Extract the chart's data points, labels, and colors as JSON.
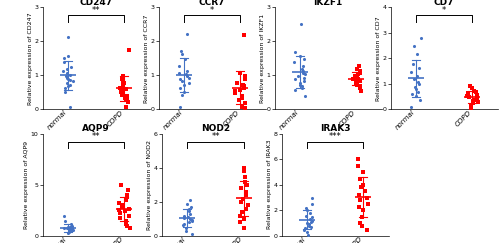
{
  "panels": [
    {
      "title": "CD247",
      "ylabel": "Relative expression of CD247",
      "significance": "**",
      "ylim": [
        0,
        3
      ],
      "yticks": [
        0,
        1,
        2,
        3
      ],
      "normal_points": [
        0.08,
        0.5,
        0.62,
        0.68,
        0.72,
        0.78,
        0.82,
        0.87,
        0.9,
        0.93,
        0.97,
        1.02,
        1.07,
        1.12,
        1.18,
        1.25,
        1.38,
        1.52,
        1.58,
        2.12
      ],
      "copd_points": [
        0.08,
        0.22,
        0.28,
        0.33,
        0.38,
        0.42,
        0.48,
        0.52,
        0.57,
        0.6,
        0.63,
        0.68,
        0.73,
        0.78,
        0.83,
        0.88,
        0.98,
        1.75
      ],
      "row": 0,
      "col": 0,
      "normal_marker": "o",
      "copd_marker": "s"
    },
    {
      "title": "CCR7",
      "ylabel": "Relative expression of CCR7",
      "significance": "*",
      "ylim": [
        0,
        3
      ],
      "yticks": [
        0,
        1,
        2,
        3
      ],
      "normal_points": [
        0.08,
        0.42,
        0.52,
        0.62,
        0.72,
        0.78,
        0.83,
        0.88,
        0.93,
        0.98,
        1.03,
        1.08,
        1.13,
        1.28,
        1.48,
        1.62,
        1.72,
        2.22
      ],
      "copd_points": [
        0.03,
        0.08,
        0.18,
        0.28,
        0.33,
        0.38,
        0.48,
        0.53,
        0.58,
        0.63,
        0.68,
        0.73,
        0.78,
        0.88,
        0.98,
        1.08,
        2.18
      ],
      "row": 0,
      "col": 1,
      "normal_marker": "o",
      "copd_marker": "s"
    },
    {
      "title": "IKZF1",
      "ylabel": "Relative expression of IKZF1",
      "significance": null,
      "ylim": [
        0,
        3
      ],
      "yticks": [
        0,
        1,
        2,
        3
      ],
      "normal_points": [
        0.38,
        0.58,
        0.63,
        0.68,
        0.73,
        0.78,
        0.83,
        0.88,
        0.93,
        0.98,
        1.03,
        1.08,
        1.13,
        1.18,
        1.28,
        1.38,
        1.48,
        1.58,
        1.68,
        2.52
      ],
      "copd_points": [
        0.53,
        0.63,
        0.68,
        0.73,
        0.78,
        0.83,
        0.86,
        0.88,
        0.9,
        0.93,
        0.98,
        1.03,
        1.08,
        1.13,
        1.18,
        1.28
      ],
      "row": 0,
      "col": 2,
      "normal_marker": "o",
      "copd_marker": "s"
    },
    {
      "title": "CD7",
      "ylabel": "Relative expression of CD7",
      "significance": "*",
      "ylim": [
        0,
        4
      ],
      "yticks": [
        0,
        1,
        2,
        3,
        4
      ],
      "normal_points": [
        0.08,
        0.38,
        0.52,
        0.62,
        0.68,
        0.78,
        0.88,
        0.98,
        1.08,
        1.18,
        1.32,
        1.48,
        1.62,
        1.78,
        2.18,
        2.48,
        2.78
      ],
      "copd_points": [
        0.03,
        0.13,
        0.23,
        0.28,
        0.33,
        0.38,
        0.43,
        0.48,
        0.53,
        0.58,
        0.63,
        0.68,
        0.73,
        0.83,
        0.93
      ],
      "row": 0,
      "col": 3,
      "normal_marker": "o",
      "copd_marker": "s"
    },
    {
      "title": "AQP9",
      "ylabel": "Relative expression of AQP9",
      "significance": "**",
      "ylim": [
        0,
        10
      ],
      "yticks": [
        0,
        5,
        10
      ],
      "normal_points": [
        0.28,
        0.38,
        0.48,
        0.53,
        0.58,
        0.6,
        0.63,
        0.66,
        0.68,
        0.7,
        0.73,
        0.76,
        0.78,
        0.83,
        0.88,
        0.93,
        1.18,
        1.48,
        1.98
      ],
      "copd_points": [
        0.78,
        0.98,
        1.18,
        1.48,
        1.78,
        1.98,
        2.18,
        2.38,
        2.48,
        2.58,
        2.78,
        2.98,
        3.18,
        3.48,
        3.78,
        3.98,
        4.48,
        4.98
      ],
      "row": 1,
      "col": 0,
      "normal_marker": "o",
      "copd_marker": "s"
    },
    {
      "title": "NOD2",
      "ylabel": "Relative expression of NOD2",
      "significance": "**",
      "ylim": [
        0,
        6
      ],
      "yticks": [
        0,
        2,
        4,
        6
      ],
      "normal_points": [
        0.08,
        0.28,
        0.48,
        0.63,
        0.68,
        0.78,
        0.88,
        0.93,
        0.98,
        1.03,
        1.08,
        1.18,
        1.28,
        1.48,
        1.58,
        1.68,
        1.88,
        2.08
      ],
      "copd_points": [
        0.48,
        0.78,
        0.98,
        1.18,
        1.38,
        1.58,
        1.78,
        1.98,
        2.18,
        2.38,
        2.58,
        2.78,
        2.98,
        3.18,
        3.48,
        3.78,
        3.98
      ],
      "row": 1,
      "col": 1,
      "normal_marker": "o",
      "copd_marker": "s"
    },
    {
      "title": "IRAK3",
      "ylabel": "Relative expression of IRAK3",
      "significance": "***",
      "ylim": [
        0,
        8
      ],
      "yticks": [
        0,
        2,
        4,
        6,
        8
      ],
      "normal_points": [
        0.08,
        0.28,
        0.48,
        0.58,
        0.68,
        0.78,
        0.88,
        0.98,
        1.08,
        1.18,
        1.28,
        1.48,
        1.58,
        1.78,
        1.98,
        2.18,
        2.48,
        2.98
      ],
      "copd_points": [
        0.48,
        0.78,
        0.98,
        1.48,
        1.98,
        2.28,
        2.48,
        2.78,
        2.98,
        3.18,
        3.48,
        3.78,
        3.98,
        4.48,
        4.98,
        5.48,
        5.98
      ],
      "row": 1,
      "col": 2,
      "normal_marker": "o",
      "copd_marker": "s"
    }
  ],
  "normal_color": "#4472C4",
  "copd_color": "#FF0000",
  "copd_color_light": "#FF9999",
  "marker_size": 5,
  "errorbar_lw": 0.8,
  "mean_line_lw": 1.2,
  "sig_fontsize": 6,
  "title_fontsize": 6.5,
  "ylabel_fontsize": 4.5,
  "tick_fontsize": 4.5,
  "xticklabel_fontsize": 5.0
}
